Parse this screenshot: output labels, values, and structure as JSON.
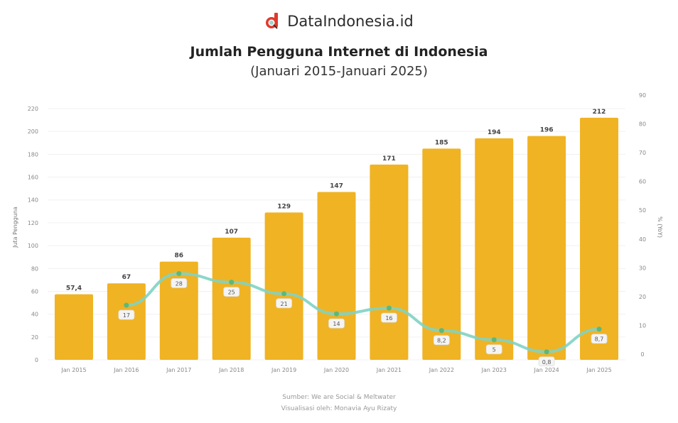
{
  "brand": {
    "name": "DataIndonesia.id",
    "logo_icon": "magnifier-d-logo",
    "logo_color": "#e03a2f"
  },
  "header": {
    "title": "Jumlah Pengguna Internet di Indonesia",
    "subtitle": "(Januari 2015-Januari 2025)"
  },
  "source": {
    "line1": "Sumber: We are Social & Meltwater",
    "line2": "Visualisasi oleh: Monavia Ayu Rizaty"
  },
  "colors": {
    "bar": "#F0B323",
    "line": "#7fd3c4",
    "marker": "#5cb87a",
    "grid": "#f0f0f0"
  },
  "chart_data": {
    "type": "bar",
    "title": "Jumlah Pengguna Internet di Indonesia",
    "subtitle": "(Januari 2015-Januari 2025)",
    "categories": [
      "Jan 2015",
      "Jan 2016",
      "Jan 2017",
      "Jan 2018",
      "Jan 2019",
      "Jan 2020",
      "Jan 2021",
      "Jan 2022",
      "Jan 2023",
      "Jan 2024",
      "Jan 2025"
    ],
    "series": [
      {
        "name": "Juta Pengguna",
        "type": "bar",
        "axis": "left",
        "values": [
          57.4,
          67,
          86,
          107,
          129,
          147,
          171,
          185,
          194,
          196,
          212
        ],
        "labels": [
          "57,4",
          "67",
          "86",
          "107",
          "129",
          "147",
          "171",
          "185",
          "194",
          "196",
          "212"
        ]
      },
      {
        "name": "% (YoY)",
        "type": "line",
        "axis": "right",
        "values": [
          null,
          17,
          28,
          25,
          21,
          14,
          16,
          8.2,
          5,
          0.8,
          8.7
        ],
        "labels": [
          "",
          "17",
          "28",
          "25",
          "21",
          "14",
          "16",
          "8,2",
          "5",
          "0,8",
          "8,7"
        ]
      }
    ],
    "xlabel": "",
    "ylabel": "Juta Pengguna",
    "ylabel_right": "% (YoY)",
    "ylim": [
      0,
      220
    ],
    "yticks": [
      0,
      20,
      40,
      60,
      80,
      100,
      120,
      140,
      160,
      180,
      200,
      220
    ],
    "ylim_right": [
      0,
      90
    ],
    "yticks_right": [
      0,
      10,
      20,
      30,
      40,
      50,
      60,
      70,
      80,
      90
    ],
    "grid": true,
    "legend": "none"
  }
}
